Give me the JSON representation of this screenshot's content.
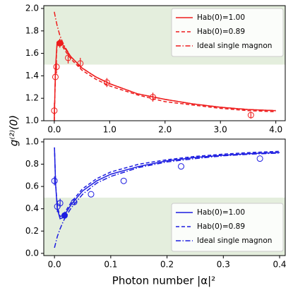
{
  "ylabel": "g⁽²⁾(0)",
  "xlabel": "Photon number |α|²",
  "chart_data": [
    {
      "type": "line",
      "xlim": [
        -0.19,
        4.17
      ],
      "ylim": [
        1.0,
        2.025
      ],
      "xticks": [
        {
          "value": 0,
          "label": "0.0"
        },
        {
          "value": 1,
          "label": "1.0"
        },
        {
          "value": 2,
          "label": "2.0"
        },
        {
          "value": 3,
          "label": "3.0"
        },
        {
          "value": 4,
          "label": "4.0"
        }
      ],
      "yticks": [
        {
          "value": 1,
          "label": "1.0"
        },
        1.2,
        1.4,
        1.6,
        1.8,
        {
          "value": 2,
          "label": "2.0"
        }
      ],
      "shade": 1.5,
      "shade_side": "above",
      "shade_color": "#e4eedd",
      "legend": "upper right",
      "x": [
        0,
        0.02,
        0.05,
        0.1,
        0.15,
        0.2,
        0.3,
        0.5,
        0.75,
        1.0,
        1.5,
        2.0,
        2.5,
        3.0,
        3.5,
        4.0
      ],
      "series": [
        {
          "name": "Hab(0)=1.00",
          "color": "#ee1c1c",
          "dash": "solid",
          "values": [
            1.0,
            1.45,
            1.7,
            1.72,
            1.68,
            1.64,
            1.57,
            1.47,
            1.39,
            1.33,
            1.24,
            1.19,
            1.15,
            1.12,
            1.1,
            1.09
          ]
        },
        {
          "name": "Hab(0)=0.89",
          "color": "#ee1c1c",
          "dash": "dashed",
          "values": [
            1.0,
            1.42,
            1.67,
            1.7,
            1.66,
            1.62,
            1.55,
            1.45,
            1.37,
            1.31,
            1.23,
            1.17,
            1.14,
            1.11,
            1.09,
            1.08
          ]
        },
        {
          "name": "Ideal single magnon",
          "color": "#ee1c1c",
          "dash": "dashdot",
          "values": [
            1.97,
            1.92,
            1.85,
            1.76,
            1.7,
            1.65,
            1.57,
            1.47,
            1.39,
            1.33,
            1.24,
            1.19,
            1.15,
            1.12,
            1.1,
            1.09
          ]
        }
      ],
      "points": {
        "color": "#ee1c1c",
        "x": [
          0.0,
          0.02,
          0.04,
          0.1,
          0.25,
          0.47,
          0.95,
          1.78,
          3.55
        ],
        "values": [
          1.09,
          1.39,
          1.48,
          1.69,
          1.56,
          1.51,
          1.34,
          1.21,
          1.05
        ],
        "errors": [
          0.07,
          0.08,
          0.06,
          0.04,
          0.05,
          0.05,
          0.04,
          0.04,
          0.03
        ],
        "filled": [
          false,
          false,
          false,
          true,
          false,
          false,
          false,
          false,
          false
        ]
      }
    },
    {
      "type": "line",
      "xlim": [
        -0.019,
        0.41
      ],
      "ylim": [
        -0.02,
        1.025
      ],
      "xticks": [
        {
          "value": 0,
          "label": "0.0"
        },
        0.1,
        0.2,
        0.3,
        0.4
      ],
      "yticks": [
        {
          "value": 0,
          "label": "0.0"
        },
        0.2,
        0.4,
        0.6,
        0.8,
        {
          "value": 1,
          "label": "1.0"
        }
      ],
      "shade": 0.5,
      "shade_side": "below",
      "shade_color": "#e4eedd",
      "legend": "lower right",
      "x": [
        0,
        0.002,
        0.005,
        0.01,
        0.015,
        0.02,
        0.03,
        0.05,
        0.075,
        0.1,
        0.15,
        0.2,
        0.25,
        0.3,
        0.35,
        0.4
      ],
      "series": [
        {
          "name": "Hab(0)=1.00",
          "color": "#1c1ce0",
          "dash": "solid",
          "values": [
            0.95,
            0.62,
            0.4,
            0.31,
            0.32,
            0.36,
            0.44,
            0.56,
            0.65,
            0.71,
            0.78,
            0.83,
            0.86,
            0.88,
            0.895,
            0.905
          ]
        },
        {
          "name": "Hab(0)=0.89",
          "color": "#1c1ce0",
          "dash": "dashed",
          "values": [
            0.95,
            0.63,
            0.42,
            0.33,
            0.34,
            0.38,
            0.46,
            0.58,
            0.67,
            0.73,
            0.8,
            0.84,
            0.87,
            0.89,
            0.905,
            0.915
          ]
        },
        {
          "name": "Ideal single magnon",
          "color": "#1c1ce0",
          "dash": "dashdot",
          "values": [
            0.05,
            0.09,
            0.15,
            0.22,
            0.28,
            0.33,
            0.41,
            0.53,
            0.63,
            0.69,
            0.77,
            0.82,
            0.85,
            0.875,
            0.89,
            0.9
          ]
        }
      ],
      "points": {
        "color": "#1c1ce0",
        "x": [
          0.0,
          0.005,
          0.01,
          0.018,
          0.035,
          0.065,
          0.123,
          0.225,
          0.365
        ],
        "values": [
          0.65,
          0.42,
          0.45,
          0.34,
          0.46,
          0.53,
          0.65,
          0.78,
          0.85
        ],
        "errors": [
          0.04,
          0.05,
          0.04,
          0.02,
          0.02,
          0.0,
          0.0,
          0.0,
          0.0
        ],
        "filled": [
          false,
          false,
          false,
          true,
          false,
          false,
          false,
          false,
          false
        ]
      }
    }
  ]
}
